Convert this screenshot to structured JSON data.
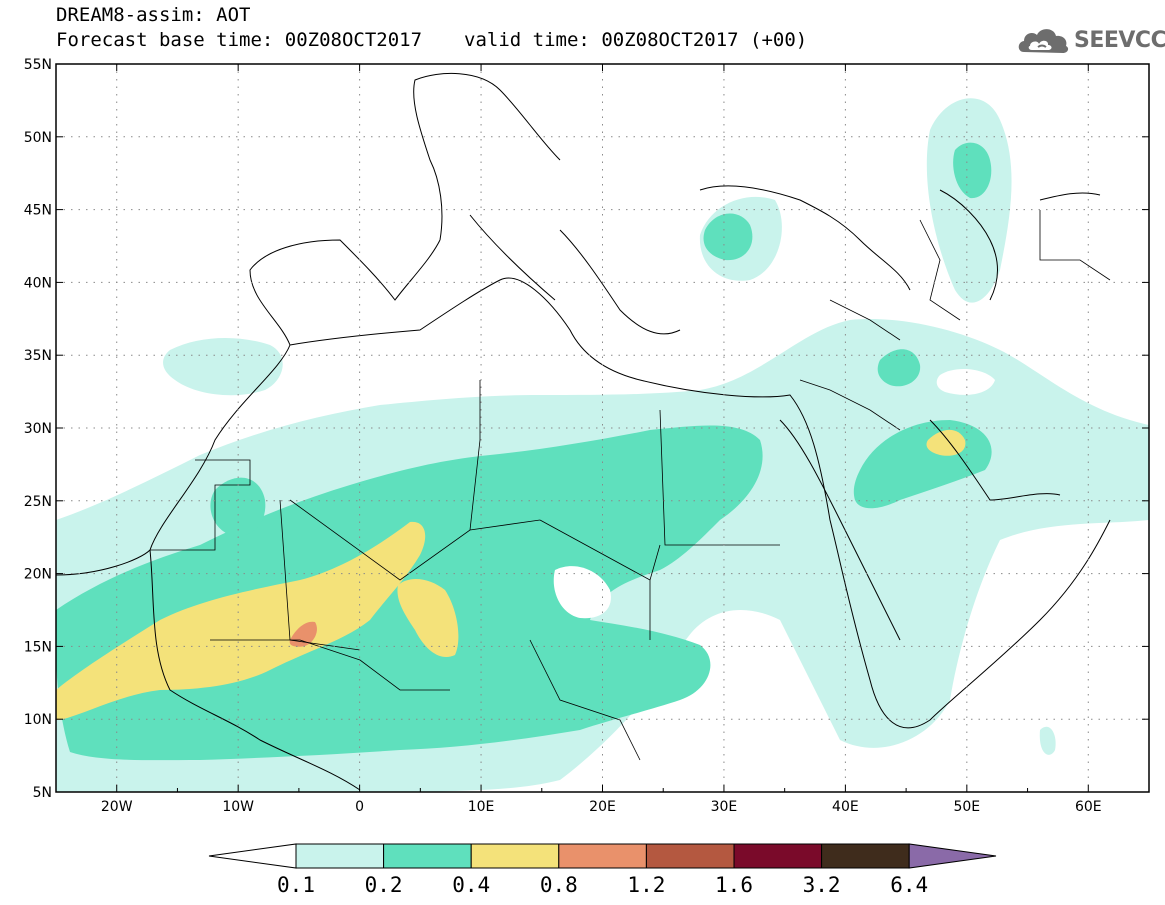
{
  "header": {
    "title": "DREAM8-assim: AOT",
    "base_time": "Forecast base time: 00Z08OCT2017",
    "valid_time": "valid time: 00Z08OCT2017 (+00)"
  },
  "logo": {
    "text": "SEEVCCC",
    "icon": "cloud-icon"
  },
  "map": {
    "projection": "lat-lon",
    "lon_range": [
      -25,
      65
    ],
    "lat_range": [
      5,
      55
    ],
    "lat_labels": [
      "5N",
      "10N",
      "15N",
      "20N",
      "25N",
      "30N",
      "35N",
      "40N",
      "45N",
      "50N",
      "55N"
    ],
    "lon_labels": [
      "20W",
      "10W",
      "0",
      "10E",
      "20E",
      "30E",
      "40E",
      "50E",
      "60E"
    ],
    "grid": "dotted"
  },
  "colorbar": {
    "levels": [
      "0.1",
      "0.2",
      "0.4",
      "0.8",
      "1.2",
      "1.6",
      "3.2",
      "6.4"
    ],
    "colors": [
      "#ffffff",
      "#c9f3ec",
      "#5fe0bd",
      "#f4e27a",
      "#e9916b",
      "#b45840",
      "#7a0a2a",
      "#3f2c1c",
      "#8a6aa8"
    ]
  }
}
